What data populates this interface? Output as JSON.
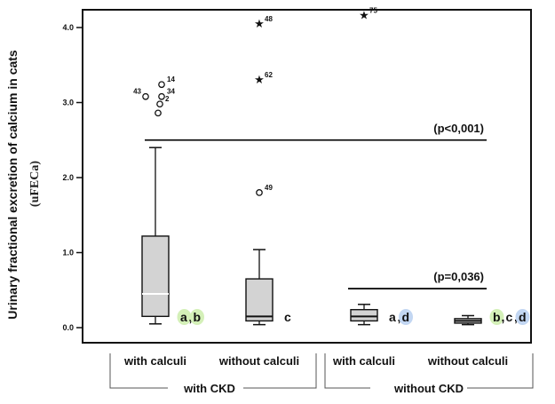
{
  "chart_data": {
    "type": "box",
    "ylabel": "Urinary fractional excretion of calcium in cats",
    "ylabel2": "(uFECa)",
    "ylim": [
      -0.1,
      4.2
    ],
    "yticks": [
      "0.0",
      "1.0",
      "2.0",
      "3.0",
      "4.0"
    ],
    "groups": [
      {
        "label": "with CKD",
        "categories": [
          "with calculi",
          "without calculi"
        ]
      },
      {
        "label": "without CKD",
        "categories": [
          "with calculi",
          "without calculi"
        ]
      }
    ],
    "boxes": [
      {
        "category": "with calculi",
        "group": "with CKD",
        "whisker_low": 0.05,
        "q1": 0.15,
        "median": 0.45,
        "q3": 1.22,
        "whisker_high": 2.4,
        "letters": [
          {
            "t": "a",
            "c": "#d4f0b8"
          },
          {
            "t": ",",
            "c": ""
          },
          {
            "t": "b",
            "c": "#d4f0b8"
          }
        ],
        "outliers": [
          {
            "value": 3.24,
            "label": "14",
            "marker": "circle"
          },
          {
            "value": 3.08,
            "label": "34",
            "marker": "circle"
          },
          {
            "value": 3.08,
            "label": "43",
            "marker": "circle"
          },
          {
            "value": 2.98,
            "label": "2",
            "marker": "circle"
          },
          {
            "value": 2.86,
            "label": "",
            "marker": "circle"
          }
        ]
      },
      {
        "category": "without calculi",
        "group": "with CKD",
        "whisker_low": 0.04,
        "q1": 0.09,
        "median": 0.15,
        "q3": 0.65,
        "whisker_high": 1.04,
        "letters": [
          {
            "t": "c",
            "c": ""
          }
        ],
        "outliers": [
          {
            "value": 1.8,
            "label": "49",
            "marker": "circle"
          },
          {
            "value": 3.3,
            "label": "62",
            "marker": "star"
          },
          {
            "value": 4.05,
            "label": "48",
            "marker": "star"
          }
        ]
      },
      {
        "category": "with calculi",
        "group": "without CKD",
        "whisker_low": 0.04,
        "q1": 0.09,
        "median": 0.15,
        "q3": 0.24,
        "whisker_high": 0.31,
        "letters": [
          {
            "t": "a",
            "c": ""
          },
          {
            "t": ",",
            "c": ""
          },
          {
            "t": "d",
            "c": "#c2d6f2"
          }
        ],
        "outliers": [
          {
            "value": 4.16,
            "label": "75",
            "marker": "star"
          }
        ]
      },
      {
        "category": "without calculi",
        "group": "without CKD",
        "whisker_low": 0.04,
        "q1": 0.06,
        "median": 0.09,
        "q3": 0.12,
        "whisker_high": 0.16,
        "letters": [
          {
            "t": "b",
            "c": "#d4f0b8"
          },
          {
            "t": ",",
            "c": ""
          },
          {
            "t": "c",
            "c": ""
          },
          {
            "t": ",",
            "c": ""
          },
          {
            "t": "d",
            "c": "#c2d6f2"
          }
        ],
        "outliers": []
      }
    ],
    "annotations": [
      {
        "text": "(p<0,001)",
        "y": 2.5,
        "from_box": 0,
        "to_box": 3
      },
      {
        "text": "(p=0,036)",
        "y": 0.52,
        "from_box": 2,
        "to_box": 3
      }
    ]
  }
}
